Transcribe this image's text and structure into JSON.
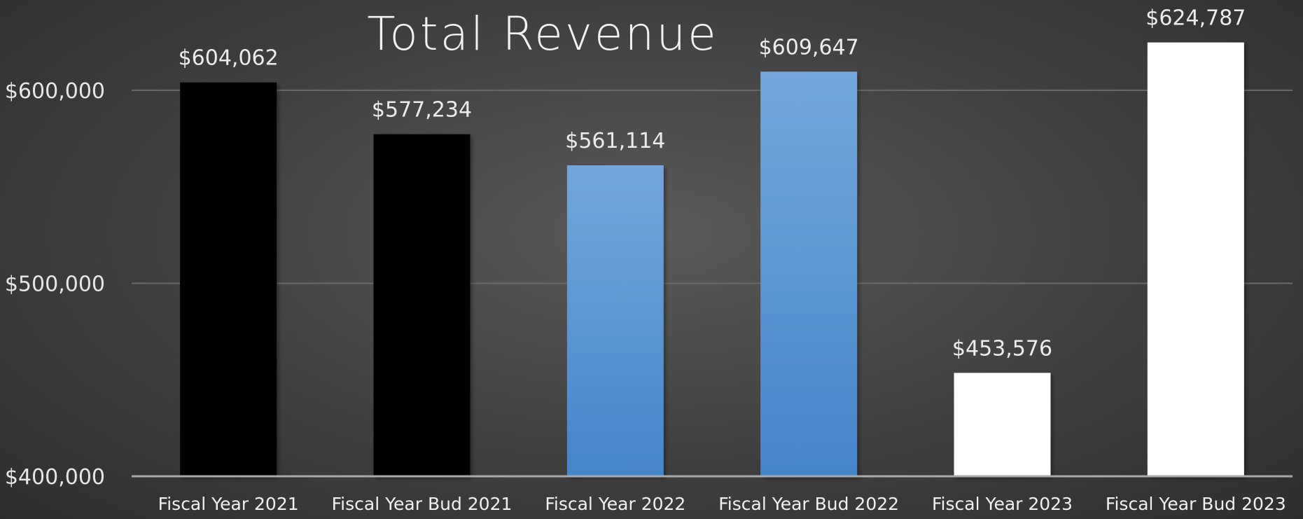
{
  "chart_data": {
    "type": "bar",
    "title": "Total Revenue",
    "xlabel": "",
    "ylabel": "",
    "categories": [
      "Fiscal Year 2021",
      "Fiscal Year Bud 2021",
      "Fiscal Year 2022",
      "Fiscal Year Bud 2022",
      "Fiscal Year 2023",
      "Fiscal Year Bud 2023"
    ],
    "values": [
      604062,
      577234,
      561114,
      609647,
      453576,
      624787
    ],
    "data_labels": [
      "$604,062",
      "$577,234",
      "$561,114",
      "$609,647",
      "$453,576",
      "$624,787"
    ],
    "ylim": [
      400000,
      625000
    ],
    "y_ticks": [
      400000,
      500000,
      600000
    ],
    "y_tick_labels": [
      "$400,000",
      "$500,000",
      "$600,000"
    ],
    "grid": true,
    "legend": "none",
    "bar_colors": [
      "#000000",
      "#000000",
      "gradient-blue",
      "gradient-blue",
      "#ffffff",
      "#ffffff"
    ],
    "blue_gradient": [
      "#74a6dc",
      "#4485ca"
    ]
  }
}
